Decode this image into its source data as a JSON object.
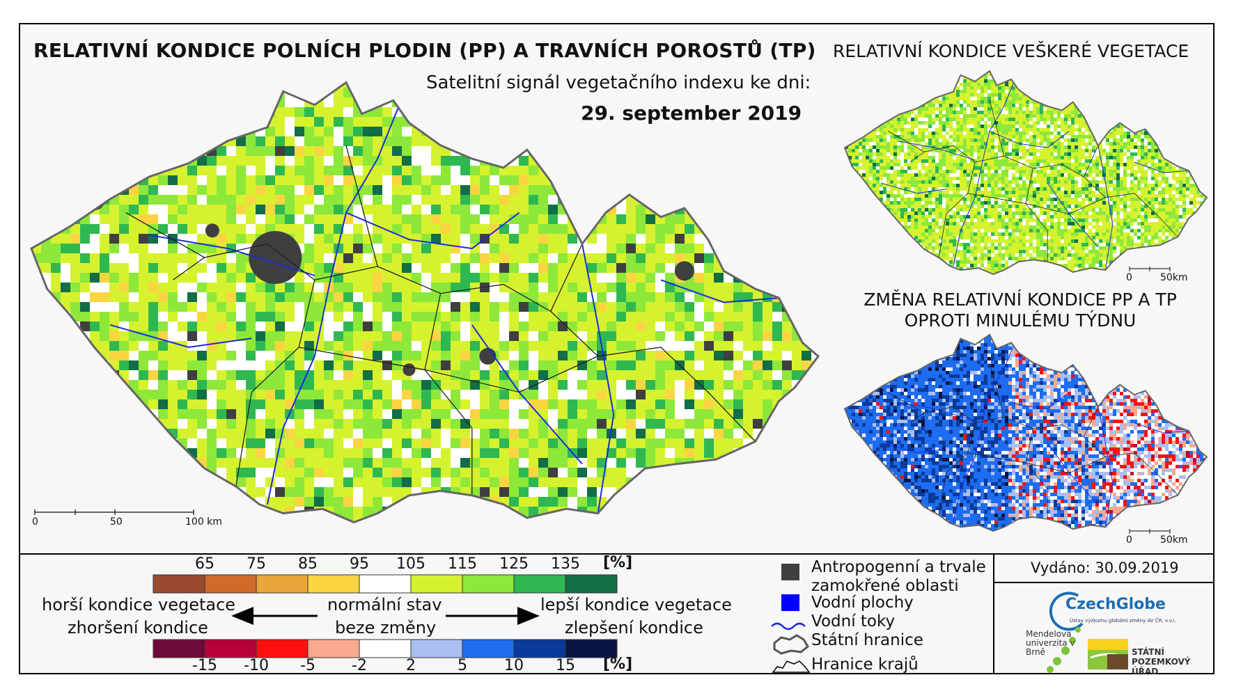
{
  "title": "RELATIVNÍ KONDICE POLNÍCH PLODIN (PP) A TRAVNÍCH POROSTŮ (TP)",
  "subtitle": "Satelitní signál vegetačního indexu ke dni:",
  "date": "29. september 2019",
  "map_top_right_title": "RELATIVNÍ KONDICE VEŠKERÉ VEGETACE",
  "map_bottom_right_title": "ZMĚNA RELATIVNÍ KONDICE PP A TP OPROTI MINULÉMU TÝDNU",
  "main_scale": {
    "labels": [
      "0",
      "50",
      "100 km"
    ]
  },
  "small_scale": {
    "labels": [
      "0",
      "50km"
    ]
  },
  "condition_legend": {
    "unit": "[%]",
    "ticks": [
      "65",
      "75",
      "85",
      "95",
      "105",
      "115",
      "125",
      "135"
    ],
    "colors": [
      "#9a4a30",
      "#cf6a2a",
      "#e8a63a",
      "#fad541",
      "#ffffff",
      "#d6f22f",
      "#8de83a",
      "#2fb850",
      "#116e46"
    ]
  },
  "change_legend": {
    "unit": "[%]",
    "ticks": [
      "-15",
      "-10",
      "-5",
      "-2",
      "2",
      "5",
      "10",
      "15"
    ],
    "colors": [
      "#6d0a3a",
      "#b8003a",
      "#ff1010",
      "#f8a98f",
      "#ffffff",
      "#a9bff0",
      "#1e6cf0",
      "#0a3a9a",
      "#0a1545"
    ]
  },
  "labels": {
    "worse_condition": "horší kondice vegetace",
    "worsening": "zhoršení kondice",
    "normal_state": "normální stav",
    "no_change": "beze změny",
    "better_condition": "lepší kondice vegetace",
    "improvement": "zlepšení kondice"
  },
  "map_legend": {
    "anthropogenic_line1": "Antropogenní a trvale",
    "anthropogenic_line2": "zamokřené oblasti",
    "water_bodies": "Vodní plochy",
    "rivers": "Vodní toky",
    "state_border": "Státní hranice",
    "region_borders": "Hranice krajů",
    "anthropogenic_color": "#3f3f3f",
    "water_color": "#0000ff",
    "river_color": "#1a2ad8"
  },
  "issued": "Vydáno: 30.09.2019",
  "logos": {
    "czechglobe": "CzechGlobe",
    "czechglobe_sub": "Ústav výzkumu globální změny AV ČR, v.v.i.",
    "mendel": "Mendelova univerzita v Brně",
    "spu": "STÁTNÍ POZEMKOVÝ ÚŘAD"
  }
}
